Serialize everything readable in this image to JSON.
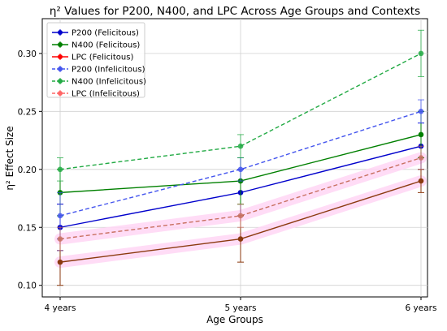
{
  "chart_data": {
    "type": "line",
    "title": "η² Values for P200, N400, and LPC Across Age Groups and Contexts",
    "xlabel": "Age Groups",
    "ylabel": "η² Effect Size",
    "categories": [
      "4 years",
      "5 years",
      "6 years"
    ],
    "ylim": [
      0.09,
      0.33
    ],
    "yticks": [
      "0.10",
      "0.15",
      "0.20",
      "0.25",
      "0.30"
    ],
    "ytick_values": [
      0.1,
      0.15,
      0.2,
      0.25,
      0.3
    ],
    "grid": true,
    "legend_position": "top-left",
    "series": [
      {
        "name": "P200 (Felicitous)",
        "values": [
          0.15,
          0.18,
          0.22
        ],
        "errors": [
          0.02,
          0.02,
          0.02
        ],
        "color": "#0000cc",
        "dashed": false
      },
      {
        "name": "N400 (Felicitous)",
        "values": [
          0.18,
          0.19,
          0.23
        ],
        "errors": [
          0.02,
          0.02,
          0.02
        ],
        "color": "#008000",
        "dashed": false
      },
      {
        "name": "LPC (Felicitous)",
        "values": [
          0.12,
          0.14,
          0.19
        ],
        "errors": [
          0.02,
          0.02,
          0.01
        ],
        "color": "#ff0000",
        "dashed": false
      },
      {
        "name": "P200 (Infelicitous)",
        "values": [
          0.16,
          0.2,
          0.25
        ],
        "errors": [
          0.02,
          0.01,
          0.01
        ],
        "color": "#4455ee",
        "dashed": true
      },
      {
        "name": "N400 (Infelicitous)",
        "values": [
          0.2,
          0.22,
          0.3
        ],
        "errors": [
          0.01,
          0.01,
          0.02
        ],
        "color": "#22aa44",
        "dashed": true
      },
      {
        "name": "LPC (Infelicitous)",
        "values": [
          0.14,
          0.16,
          0.21
        ],
        "errors": [
          0.01,
          0.01,
          0.01
        ],
        "color": "#ee5555",
        "dashed": true
      }
    ],
    "rendered_line_color_lpc_felicitous": "#8b3a0f",
    "rendered_line_color_lpc_infelicitous": "#c87060",
    "shadow_color": "#ffd6f5"
  }
}
